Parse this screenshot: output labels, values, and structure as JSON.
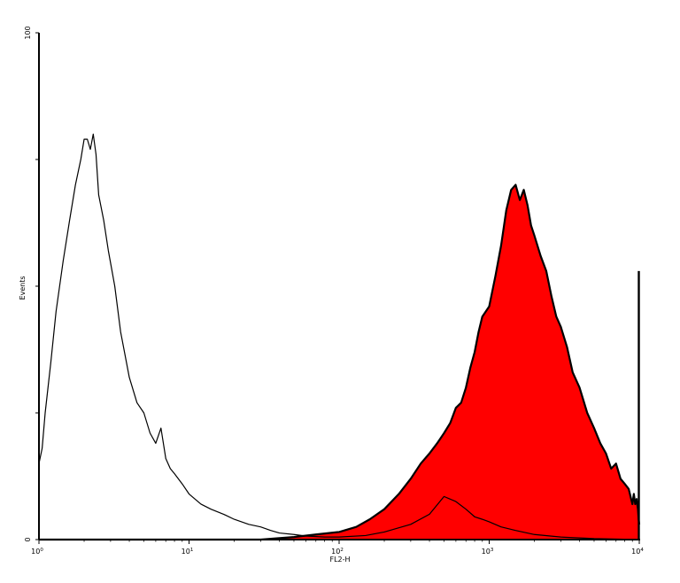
{
  "chart_data": {
    "type": "area",
    "xlabel": "FL2-H",
    "ylabel": "Events",
    "x_scale": "log",
    "xlim": [
      1,
      10000
    ],
    "ylim": [
      0,
      100
    ],
    "x_ticks": [
      {
        "base": "10",
        "exp": "0"
      },
      {
        "base": "10",
        "exp": "1"
      },
      {
        "base": "10",
        "exp": "2"
      },
      {
        "base": "10",
        "exp": "3"
      },
      {
        "base": "10",
        "exp": "4"
      }
    ],
    "y_ticks": [
      "0",
      "100"
    ],
    "grid": false,
    "series": [
      {
        "style": "outline",
        "color": "#000000",
        "x": [
          1.0,
          1.05,
          1.1,
          1.2,
          1.3,
          1.45,
          1.6,
          1.75,
          1.9,
          2.0,
          2.1,
          2.2,
          2.3,
          2.4,
          2.5,
          2.7,
          2.9,
          3.2,
          3.5,
          4.0,
          4.5,
          5.0,
          5.5,
          6.0,
          6.5,
          7.0,
          7.5,
          8.0,
          9.0,
          10.0,
          12.0,
          14.0,
          17.0,
          20.0,
          25.0,
          30.0,
          35.0,
          40.0,
          50.0,
          60.0,
          80.0,
          100.0,
          150.0,
          200.0,
          300.0,
          400.0,
          500.0,
          600.0,
          700.0,
          800.0,
          900.0,
          1000.0,
          1200.0,
          1500.0,
          2000.0,
          3000.0,
          5000.0,
          10000.0
        ],
        "y": [
          15,
          18,
          25,
          35,
          45,
          55,
          63,
          70,
          75,
          79,
          79,
          77,
          80,
          76,
          68,
          63,
          57,
          50,
          41,
          32,
          27,
          25,
          21,
          19,
          22,
          16,
          14,
          13,
          11,
          9,
          7,
          6,
          5,
          4,
          3,
          2.5,
          1.8,
          1.3,
          1.0,
          0.7,
          0.5,
          0.5,
          0.8,
          1.5,
          3.0,
          5.0,
          8.5,
          7.5,
          6.0,
          4.5,
          4.0,
          3.5,
          2.5,
          1.8,
          1.0,
          0.5,
          0.2,
          0.0
        ]
      },
      {
        "style": "filled",
        "color": "#ff0000",
        "x": [
          1.0,
          30.0,
          50.0,
          70.0,
          100.0,
          130.0,
          160.0,
          200.0,
          250.0,
          300.0,
          350.0,
          400.0,
          450.0,
          500.0,
          550.0,
          600.0,
          650.0,
          700.0,
          750.0,
          800.0,
          850.0,
          900.0,
          1000.0,
          1100.0,
          1200.0,
          1300.0,
          1400.0,
          1500.0,
          1600.0,
          1700.0,
          1800.0,
          1900.0,
          2000.0,
          2200.0,
          2400.0,
          2600.0,
          2800.0,
          3000.0,
          3300.0,
          3600.0,
          4000.0,
          4500.0,
          5000.0,
          5500.0,
          6000.0,
          6500.0,
          7000.0,
          7500.0,
          8000.0,
          8500.0,
          9000.0,
          9200.0,
          9400.0,
          9600.0,
          9800.0,
          9900.0,
          10000.0
        ],
        "y": [
          0,
          0,
          0.5,
          1.0,
          1.5,
          2.5,
          4,
          6,
          9,
          12,
          15,
          17,
          19,
          21,
          23,
          26,
          27,
          30,
          34,
          37,
          41,
          44,
          46,
          52,
          58,
          65,
          69,
          70,
          67,
          69,
          66,
          62,
          60,
          56,
          53,
          48,
          44,
          42,
          38,
          33,
          30,
          25,
          22,
          19,
          17,
          14,
          15,
          12,
          11,
          10,
          7,
          9,
          7,
          8,
          6,
          4,
          3
        ]
      }
    ],
    "end_spike": {
      "x": 10000,
      "y": 53
    }
  }
}
